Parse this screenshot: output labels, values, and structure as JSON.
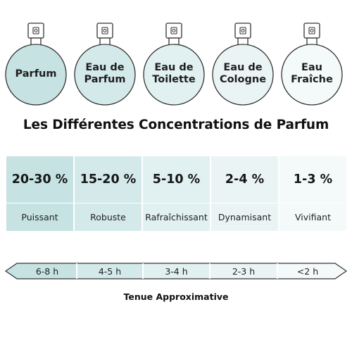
{
  "colors": {
    "level1": "#c6e2e2",
    "level2": "#d4e9ea",
    "level3": "#e1f0f0",
    "level4": "#ebf4f5",
    "level5": "#f4f9fa",
    "outline": "#333333"
  },
  "bottles": [
    {
      "label": "Parfum",
      "icon": "perfume-bottle-icon"
    },
    {
      "label": "Eau de\nParfum",
      "icon": "perfume-bottle-icon"
    },
    {
      "label": "Eau de\nToilette",
      "icon": "perfume-bottle-icon"
    },
    {
      "label": "Eau de\nCologne",
      "icon": "perfume-bottle-icon"
    },
    {
      "label": "Eau\nFraîche",
      "icon": "perfume-bottle-icon"
    }
  ],
  "title": "Les Différentes Concentrations de Parfum",
  "concentrations": [
    {
      "percent": "20-30 %",
      "strength": "Puissant"
    },
    {
      "percent": "15-20 %",
      "strength": "Robuste"
    },
    {
      "percent": "5-10 %",
      "strength": "Rafraîchissant"
    },
    {
      "percent": "2-4 %",
      "strength": "Dynamisant"
    },
    {
      "percent": "1-3 %",
      "strength": "Vivifiant"
    }
  ],
  "durations": [
    "6-8 h",
    "4-5 h",
    "3-4 h",
    "2-3 h",
    "<2 h"
  ],
  "duration_caption": "Tenue Approximative"
}
